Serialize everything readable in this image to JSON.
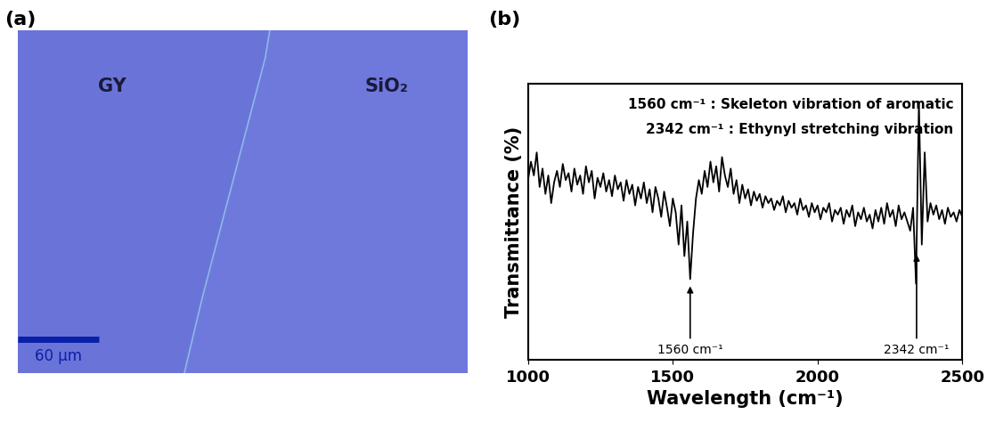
{
  "panel_a": {
    "label": "(a)",
    "region_left": "GY",
    "region_right": "SiO₂",
    "scale_bar": {
      "value": 60,
      "label": "60 μm"
    }
  },
  "chart_data": {
    "type": "line",
    "panel_label": "(b)",
    "x_label": "Wavelength (cm⁻¹)",
    "y_label": "Transmittance (%)",
    "xlim": [
      1000,
      2500
    ],
    "xticks": [
      1000,
      1500,
      2000,
      2500
    ],
    "ylim": [
      -20,
      100
    ],
    "yticks": [],
    "tick_labels": "x",
    "color": "#000000",
    "annotations": [
      "1560 cm⁻¹ : Skeleton vibration of aromatic",
      "2342 cm⁻¹ : Ethynyl stretching vibration"
    ],
    "arrows": [
      {
        "text": "1560 cm⁻¹",
        "x": 1560
      },
      {
        "text": "2342 cm⁻¹",
        "x": 2342
      }
    ],
    "x": [
      1000,
      1010,
      1020,
      1030,
      1040,
      1050,
      1060,
      1070,
      1080,
      1090,
      1100,
      1110,
      1120,
      1130,
      1140,
      1150,
      1160,
      1170,
      1180,
      1190,
      1200,
      1210,
      1220,
      1230,
      1240,
      1250,
      1260,
      1270,
      1280,
      1290,
      1300,
      1310,
      1320,
      1330,
      1340,
      1350,
      1360,
      1370,
      1380,
      1390,
      1400,
      1410,
      1420,
      1430,
      1440,
      1450,
      1460,
      1470,
      1480,
      1490,
      1500,
      1510,
      1520,
      1530,
      1540,
      1550,
      1560,
      1570,
      1580,
      1590,
      1600,
      1610,
      1620,
      1630,
      1640,
      1650,
      1660,
      1670,
      1680,
      1690,
      1700,
      1710,
      1720,
      1730,
      1740,
      1750,
      1760,
      1770,
      1780,
      1790,
      1800,
      1810,
      1820,
      1830,
      1840,
      1850,
      1860,
      1870,
      1880,
      1890,
      1900,
      1910,
      1920,
      1930,
      1940,
      1950,
      1960,
      1970,
      1980,
      1990,
      2000,
      2010,
      2020,
      2030,
      2040,
      2050,
      2060,
      2070,
      2080,
      2090,
      2100,
      2110,
      2120,
      2130,
      2140,
      2150,
      2160,
      2170,
      2180,
      2190,
      2200,
      2210,
      2220,
      2230,
      2240,
      2250,
      2260,
      2270,
      2280,
      2290,
      2300,
      2310,
      2320,
      2330,
      2340,
      2350,
      2360,
      2370,
      2380,
      2390,
      2400,
      2410,
      2420,
      2430,
      2440,
      2450,
      2460,
      2470,
      2480,
      2490,
      2500
    ],
    "values": [
      58,
      66,
      60,
      70,
      55,
      63,
      52,
      60,
      48,
      57,
      62,
      55,
      65,
      58,
      61,
      53,
      63,
      56,
      60,
      52,
      64,
      57,
      62,
      50,
      59,
      55,
      61,
      53,
      58,
      51,
      60,
      54,
      57,
      49,
      58,
      52,
      56,
      47,
      55,
      50,
      57,
      48,
      54,
      44,
      55,
      50,
      42,
      53,
      46,
      38,
      50,
      44,
      30,
      47,
      25,
      40,
      15,
      35,
      50,
      58,
      52,
      62,
      55,
      66,
      57,
      64,
      53,
      68,
      60,
      55,
      63,
      52,
      58,
      48,
      56,
      50,
      54,
      47,
      53,
      49,
      52,
      46,
      51,
      48,
      50,
      45,
      49,
      47,
      51,
      44,
      49,
      46,
      48,
      43,
      50,
      45,
      47,
      42,
      48,
      44,
      47,
      41,
      46,
      44,
      48,
      40,
      45,
      43,
      46,
      39,
      45,
      42,
      47,
      38,
      44,
      41,
      46,
      40,
      43,
      37,
      45,
      40,
      46,
      39,
      48,
      42,
      45,
      38,
      47,
      41,
      44,
      40,
      36,
      46,
      13,
      92,
      30,
      70,
      40,
      48,
      43,
      47,
      41,
      45,
      39,
      46,
      42,
      44,
      40,
      45,
      42
    ]
  }
}
